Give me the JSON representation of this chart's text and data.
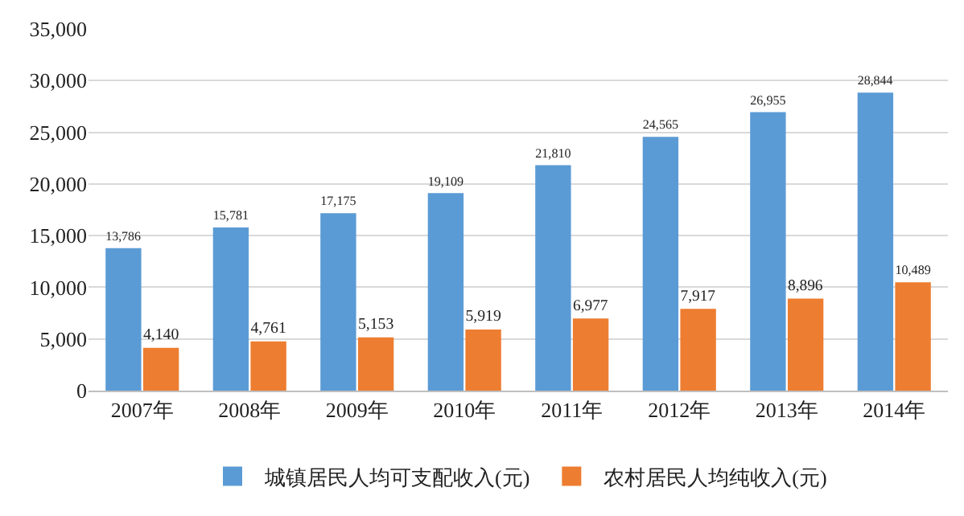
{
  "chart_data": {
    "type": "bar",
    "categories": [
      "2007年",
      "2008年",
      "2009年",
      "2010年",
      "2011年",
      "2012年",
      "2013年",
      "2014年"
    ],
    "series": [
      {
        "name": "城镇居民人均可支配收入(元)",
        "color": "#5b9bd5",
        "values": [
          13786,
          15781,
          17175,
          19109,
          21810,
          24565,
          26955,
          28844
        ],
        "value_labels": [
          "13,786",
          "15,781",
          "17,175",
          "19,109",
          "21,810",
          "24,565",
          "26,955",
          "28,844"
        ]
      },
      {
        "name": "农村居民人均纯收入(元)",
        "color": "#ed7d31",
        "values": [
          4140,
          4761,
          5153,
          5919,
          6977,
          7917,
          8896,
          10489
        ],
        "value_labels": [
          "4,140",
          "4,761",
          "5,153",
          "5,919",
          "6,977",
          "7,917",
          "8,896",
          "10,489"
        ]
      }
    ],
    "ylim": [
      0,
      35000
    ],
    "yticks": [
      {
        "value": 0,
        "label": "0"
      },
      {
        "value": 5000,
        "label": "5,000"
      },
      {
        "value": 10000,
        "label": "10,000"
      },
      {
        "value": 15000,
        "label": "15,000"
      },
      {
        "value": 20000,
        "label": "20,000"
      },
      {
        "value": 25000,
        "label": "25,000"
      },
      {
        "value": 30000,
        "label": "30,000"
      },
      {
        "value": 35000,
        "label": "35,000"
      }
    ],
    "grid": "y",
    "legend": "bottom"
  }
}
